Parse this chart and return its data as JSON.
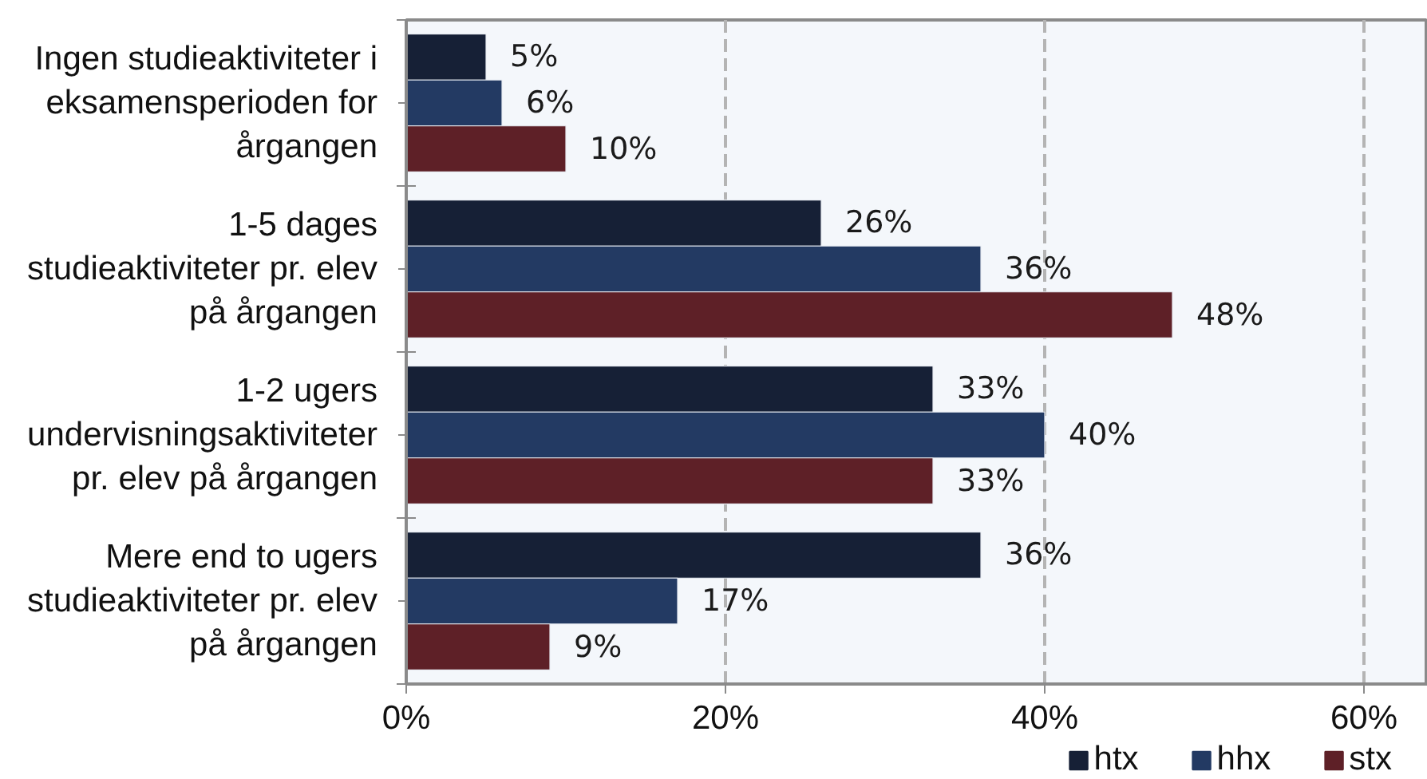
{
  "chart_data": {
    "type": "bar",
    "orientation": "horizontal",
    "categories": [
      "Ingen studieaktiviteter i eksamensperioden for årgangen",
      "1-5 dages studieaktiviteter pr. elev på årgangen",
      "1-2 ugers undervisningsaktiviteter pr. elev på årgangen",
      "Mere end to ugers studieaktiviteter pr. elev på årgangen"
    ],
    "series": [
      {
        "name": "htx",
        "color": "#162036",
        "values": [
          5,
          26,
          33,
          36
        ],
        "value_labels": [
          "5%",
          "26%",
          "33%",
          "36%"
        ]
      },
      {
        "name": "hhx",
        "color": "#233a63",
        "values": [
          6,
          36,
          40,
          17
        ],
        "value_labels": [
          "6%",
          "36%",
          "40%",
          "17%"
        ]
      },
      {
        "name": "stx",
        "color": "#5e2027",
        "values": [
          10,
          48,
          33,
          9
        ],
        "value_labels": [
          "10%",
          "48%",
          "33%",
          "9%"
        ]
      }
    ],
    "xlim": [
      0,
      64
    ],
    "xticks": [
      {
        "value": 0,
        "label": "0%"
      },
      {
        "value": 20,
        "label": "20%"
      },
      {
        "value": 40,
        "label": "40%"
      },
      {
        "value": 60,
        "label": "60%"
      }
    ],
    "grid": "x",
    "legend": "bottom right"
  }
}
